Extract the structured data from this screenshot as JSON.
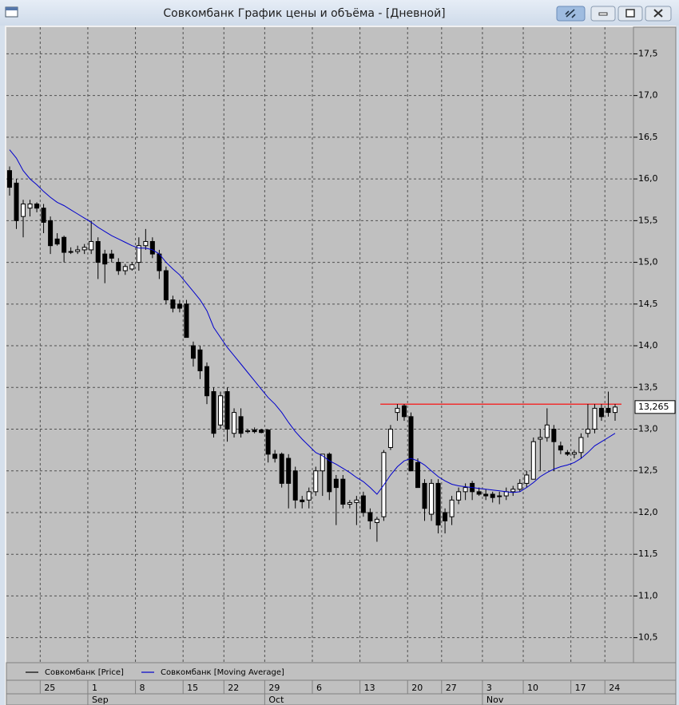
{
  "chart_data": {
    "type": "candlestick",
    "title": "Совкомбанк График цены и объёма - [Дневной]",
    "categories": [
      null,
      null,
      null,
      null,
      null,
      "25",
      null,
      null,
      null,
      null,
      null,
      null,
      "1",
      null,
      null,
      null,
      null,
      null,
      null,
      "8",
      null,
      null,
      null,
      null,
      null,
      null,
      "15",
      null,
      null,
      null,
      null,
      null,
      "22",
      null,
      null,
      null,
      null,
      null,
      "29",
      null,
      null,
      null,
      null,
      null,
      null,
      "6",
      null,
      null,
      null,
      null,
      null,
      null,
      "13",
      null,
      null,
      null,
      null,
      null,
      null,
      "20",
      null,
      null,
      null,
      null,
      "27",
      null,
      null,
      null,
      null,
      null,
      "3",
      null,
      null,
      null,
      null,
      null,
      "10",
      null,
      null,
      null,
      null,
      null,
      null,
      "17",
      null,
      null,
      null,
      null,
      "24",
      null
    ],
    "months": [
      {
        "value": 12,
        "label": "Sep"
      },
      {
        "value": 38,
        "label": "Oct"
      },
      {
        "value": 70,
        "label": "Nov"
      }
    ],
    "series": [
      {
        "name": "Совкомбанк [Price]",
        "color": "#000000",
        "up_color": "#ffffff",
        "down_color": "#000000",
        "open": [
          16.1,
          15.95,
          15.55,
          15.65,
          15.7,
          15.65,
          15.5,
          15.28,
          15.3,
          15.13,
          15.13,
          15.15,
          15.15,
          15.25,
          15.1,
          15.1,
          15.0,
          14.9,
          14.92,
          15.0,
          15.2,
          15.25,
          15.1,
          14.9,
          14.55,
          14.5,
          14.5,
          14.0,
          13.95,
          13.75,
          13.45,
          13.05,
          13.45,
          12.95,
          13.15,
          12.97,
          12.99,
          12.99,
          12.99,
          12.7,
          12.7,
          12.65,
          12.5,
          12.15,
          12.15,
          12.25,
          12.5,
          12.7,
          12.4,
          12.4,
          12.1,
          12.12,
          12.2,
          12.0,
          11.88,
          11.95,
          12.78,
          13.2,
          13.28,
          13.15,
          12.6,
          12.35,
          11.98,
          12.35,
          12.0,
          11.95,
          12.15,
          12.25,
          12.35,
          12.25,
          12.22,
          12.22,
          12.2,
          12.2,
          12.25,
          12.28,
          12.35,
          12.4,
          12.88,
          12.9,
          13.0,
          12.8,
          12.72,
          12.7,
          12.72,
          12.95,
          13.0,
          13.25,
          13.25,
          13.2
        ],
        "high": [
          16.15,
          16.0,
          15.75,
          15.75,
          15.72,
          15.7,
          15.55,
          15.35,
          15.32,
          15.18,
          15.2,
          15.22,
          15.5,
          15.3,
          15.15,
          15.15,
          15.05,
          14.98,
          15.0,
          15.3,
          15.4,
          15.3,
          15.15,
          14.95,
          14.6,
          14.55,
          14.55,
          14.05,
          14.0,
          13.8,
          13.5,
          13.45,
          13.5,
          13.25,
          13.25,
          13.0,
          13.02,
          13.0,
          13.0,
          12.75,
          12.72,
          12.7,
          12.55,
          12.2,
          12.3,
          12.55,
          12.7,
          12.72,
          12.45,
          12.45,
          12.15,
          12.2,
          12.25,
          12.05,
          11.95,
          12.75,
          13.05,
          13.3,
          13.3,
          13.2,
          12.65,
          12.4,
          12.4,
          12.4,
          12.05,
          12.2,
          12.3,
          12.35,
          12.38,
          12.3,
          12.28,
          12.25,
          12.25,
          12.3,
          12.32,
          12.4,
          12.5,
          12.9,
          13.0,
          13.25,
          13.05,
          12.85,
          12.75,
          12.75,
          12.95,
          13.3,
          13.3,
          13.3,
          13.45,
          13.3
        ],
        "low": [
          15.8,
          15.4,
          15.3,
          15.55,
          15.6,
          15.35,
          15.1,
          15.2,
          15.0,
          15.1,
          15.1,
          15.1,
          15.1,
          14.8,
          14.75,
          15.0,
          14.85,
          14.85,
          14.9,
          14.9,
          15.15,
          15.05,
          14.8,
          14.5,
          14.4,
          14.4,
          14.1,
          13.75,
          13.6,
          13.3,
          12.9,
          13.0,
          12.85,
          12.9,
          12.9,
          12.95,
          12.95,
          12.95,
          12.6,
          12.6,
          12.3,
          12.05,
          12.05,
          12.05,
          12.05,
          12.2,
          12.2,
          12.15,
          11.85,
          12.05,
          12.05,
          11.85,
          11.95,
          11.8,
          11.65,
          11.9,
          12.75,
          13.1,
          13.1,
          12.5,
          12.3,
          11.9,
          11.9,
          11.75,
          11.75,
          11.85,
          12.1,
          12.15,
          12.15,
          12.2,
          12.15,
          12.12,
          12.1,
          12.15,
          12.2,
          12.25,
          12.3,
          12.4,
          12.5,
          12.85,
          12.5,
          12.7,
          12.68,
          12.65,
          12.65,
          12.9,
          12.95,
          13.1,
          13.15,
          13.1
        ],
        "close": [
          15.9,
          15.5,
          15.7,
          15.7,
          15.65,
          15.48,
          15.2,
          15.22,
          15.12,
          15.12,
          15.15,
          15.18,
          15.25,
          15.0,
          14.98,
          15.05,
          14.9,
          14.95,
          14.97,
          15.2,
          15.25,
          15.1,
          14.9,
          14.55,
          14.45,
          14.45,
          14.1,
          13.85,
          13.7,
          13.4,
          12.95,
          13.4,
          13.0,
          13.2,
          12.95,
          12.98,
          12.97,
          12.96,
          12.7,
          12.65,
          12.35,
          12.35,
          12.15,
          12.13,
          12.25,
          12.5,
          12.7,
          12.25,
          12.3,
          12.1,
          12.12,
          12.15,
          12.0,
          11.9,
          11.92,
          12.72,
          13.0,
          13.25,
          13.15,
          12.5,
          12.3,
          12.05,
          12.35,
          11.85,
          11.9,
          12.15,
          12.25,
          12.3,
          12.25,
          12.22,
          12.2,
          12.18,
          12.2,
          12.25,
          12.28,
          12.35,
          12.45,
          12.85,
          12.9,
          13.05,
          12.85,
          12.75,
          12.7,
          12.72,
          12.9,
          13.0,
          13.25,
          13.15,
          13.2,
          13.265
        ]
      },
      {
        "name": "Совкомбанк [Moving Average]",
        "color": "#0000cc",
        "values": [
          16.35,
          16.25,
          16.1,
          16.0,
          15.93,
          15.85,
          15.78,
          15.72,
          15.68,
          15.63,
          15.58,
          15.53,
          15.48,
          15.42,
          15.37,
          15.32,
          15.28,
          15.24,
          15.2,
          15.17,
          15.17,
          15.15,
          15.1,
          15.0,
          14.92,
          14.85,
          14.75,
          14.65,
          14.55,
          14.42,
          14.22,
          14.1,
          13.98,
          13.88,
          13.78,
          13.68,
          13.58,
          13.48,
          13.38,
          13.3,
          13.2,
          13.08,
          12.97,
          12.88,
          12.8,
          12.72,
          12.68,
          12.62,
          12.58,
          12.53,
          12.48,
          12.42,
          12.37,
          12.3,
          12.22,
          12.33,
          12.45,
          12.55,
          12.62,
          12.65,
          12.62,
          12.57,
          12.5,
          12.43,
          12.38,
          12.34,
          12.32,
          12.31,
          12.3,
          12.29,
          12.28,
          12.27,
          12.26,
          12.25,
          12.24,
          12.25,
          12.3,
          12.36,
          12.43,
          12.48,
          12.52,
          12.55,
          12.57,
          12.6,
          12.65,
          12.72,
          12.8,
          12.85,
          12.9,
          12.95
        ]
      }
    ],
    "level": {
      "value": 13.3,
      "color": "#ff0000",
      "from": 55
    },
    "last_label": "13,265",
    "ylim": [
      10.2,
      17.82
    ],
    "yticks": [
      {
        "value": 10.5,
        "label": "10,5"
      },
      {
        "value": 11,
        "label": "11,0"
      },
      {
        "value": 11.5,
        "label": "11,5"
      },
      {
        "value": 12,
        "label": "12,0"
      },
      {
        "value": 12.5,
        "label": "12,5"
      },
      {
        "value": 13,
        "label": "13,0"
      },
      {
        "value": 13.5,
        "label": "13,5"
      },
      {
        "value": 14,
        "label": "14,0"
      },
      {
        "value": 14.5,
        "label": "14,5"
      },
      {
        "value": 15,
        "label": "15,0"
      },
      {
        "value": 15.5,
        "label": "15,5"
      },
      {
        "value": 16,
        "label": "16,0"
      },
      {
        "value": 16.5,
        "label": "16,5"
      },
      {
        "value": 17,
        "label": "17,0"
      },
      {
        "value": 17.5,
        "label": "17,5"
      }
    ],
    "grid": true
  }
}
